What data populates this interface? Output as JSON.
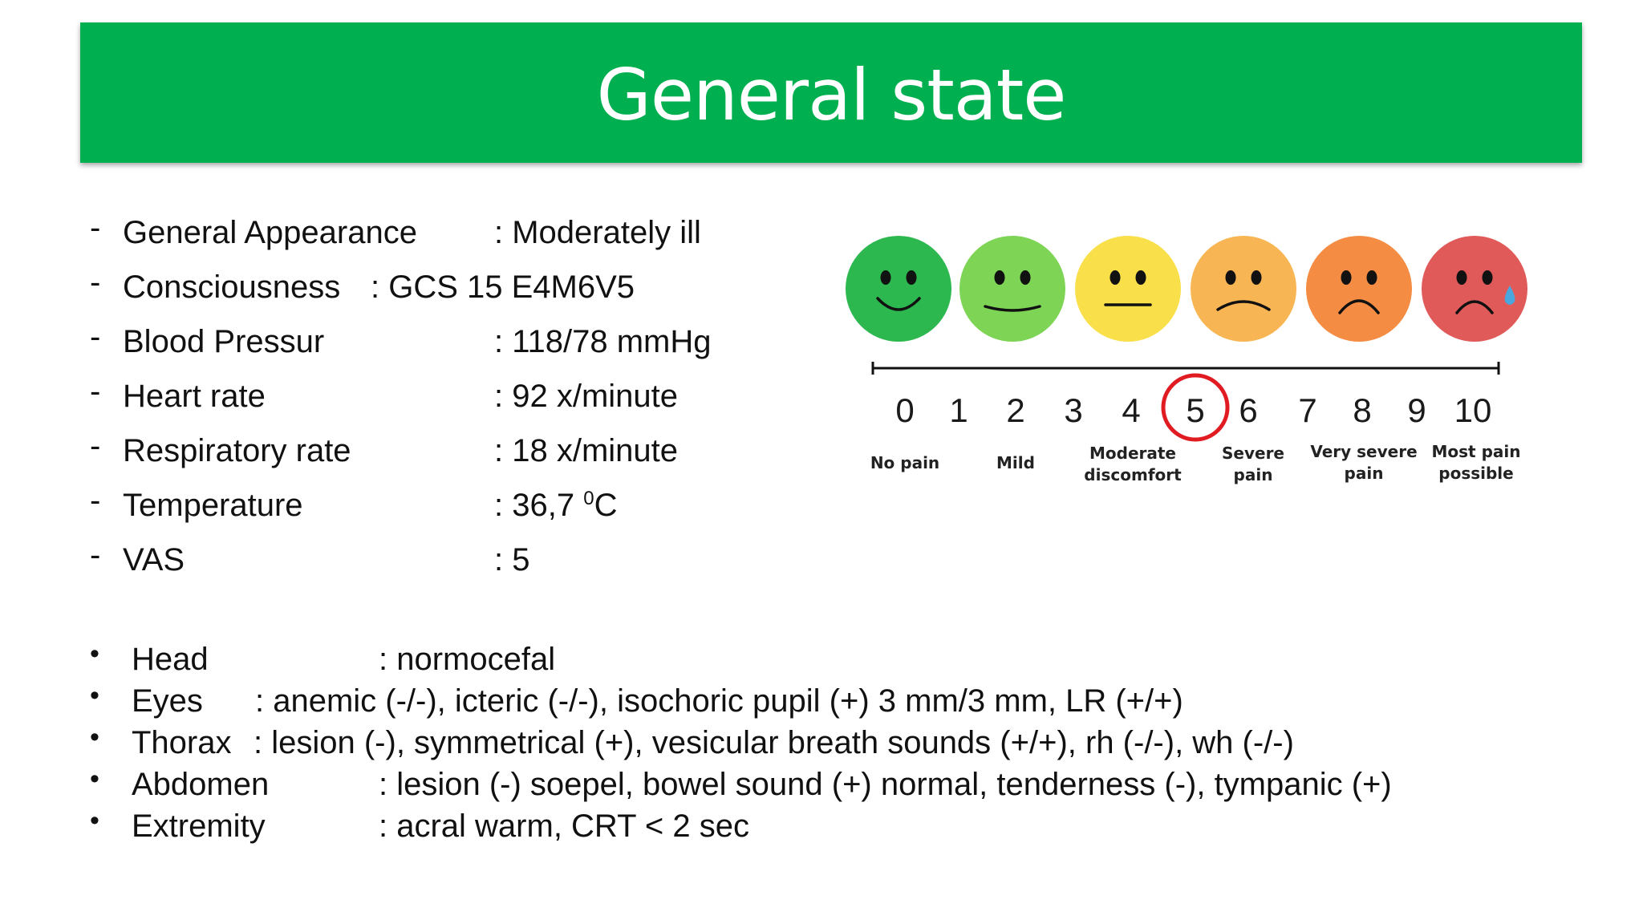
{
  "title": "General state",
  "vitals": [
    {
      "label": "General Appearance",
      "value": ": Moderately ill"
    },
    {
      "label": "Consciousness",
      "value": ": GCS 15 E4M6V5"
    },
    {
      "label": "Blood Pressur",
      "value": ": 118/78 mmHg"
    },
    {
      "label": "Heart rate",
      "value": ": 92 x/minute"
    },
    {
      "label": "Respiratory rate",
      "value": ": 18 x/minute"
    },
    {
      "label": "Temperature",
      "value_prefix": ": 36,7 ",
      "value_sup": "0",
      "value_suffix": "C"
    },
    {
      "label": "VAS",
      "value": ": 5"
    }
  ],
  "exam": [
    {
      "label": "Head",
      "value": ": normocefal"
    },
    {
      "label": "Eyes",
      "value": ": anemic (-/-), icteric (-/-), isochoric pupil (+) 3 mm/3 mm, LR (+/+)"
    },
    {
      "label": "Thorax",
      "value": ": lesion (-), symmetrical (+), vesicular breath sounds (+/+), rh (-/-), wh (-/-)"
    },
    {
      "label": "Abdomen",
      "value": ": lesion (-) soepel, bowel sound (+) normal, tenderness (-), tympanic (+)"
    },
    {
      "label": "Extremity",
      "value": ": acral warm, CRT < 2 sec"
    }
  ],
  "pain_scale": {
    "numbers": [
      "0",
      "1",
      "2",
      "3",
      "4",
      "5",
      "6",
      "7",
      "8",
      "9",
      "10"
    ],
    "selected": "5",
    "captions": [
      {
        "line1": "No pain",
        "line2": ""
      },
      {
        "line1": "Mild",
        "line2": ""
      },
      {
        "line1": "Moderate",
        "line2": "discomfort"
      },
      {
        "line1": "Severe",
        "line2": "pain"
      },
      {
        "line1": "Very severe",
        "line2": "pain"
      },
      {
        "line1": "Most pain",
        "line2": "possible"
      }
    ],
    "face_colors": [
      "#2db84f",
      "#7ed455",
      "#f9e04b",
      "#f8b553",
      "#f58c44",
      "#e05a5a"
    ],
    "highlight_color": "#e11b22"
  }
}
